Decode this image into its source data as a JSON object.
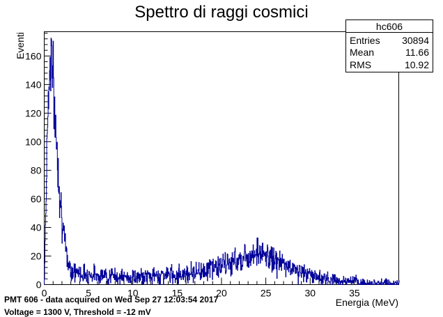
{
  "chart_data": {
    "type": "histogram",
    "title": "Spettro di raggi cosmici",
    "xlabel": "Energia (MeV)",
    "ylabel": "Eventi",
    "xlim": [
      0,
      40
    ],
    "ylim": [
      0,
      177
    ],
    "xticks": [
      0,
      5,
      10,
      15,
      20,
      25,
      30,
      35
    ],
    "yticks": [
      0,
      20,
      40,
      60,
      80,
      100,
      120,
      140,
      160
    ],
    "line_color": "#000099",
    "grid": false,
    "legend": "none",
    "stats": {
      "name": "hc606",
      "rows": [
        {
          "label": "Entries",
          "value": "30894"
        },
        {
          "label": "Mean",
          "value": "11.66"
        },
        {
          "label": "RMS",
          "value": "10.92"
        }
      ]
    },
    "points": [
      [
        0.2,
        60
      ],
      [
        0.4,
        125
      ],
      [
        0.6,
        145
      ],
      [
        0.8,
        168
      ],
      [
        1.0,
        140
      ],
      [
        1.2,
        118
      ],
      [
        1.4,
        100
      ],
      [
        1.6,
        80
      ],
      [
        1.8,
        64
      ],
      [
        2.0,
        48
      ],
      [
        2.2,
        34
      ],
      [
        2.4,
        24
      ],
      [
        2.6,
        18
      ],
      [
        2.8,
        14
      ],
      [
        3.0,
        11
      ],
      [
        3.5,
        9
      ],
      [
        4,
        8
      ],
      [
        5,
        7
      ],
      [
        6,
        7
      ],
      [
        7,
        6
      ],
      [
        8,
        6
      ],
      [
        9,
        5
      ],
      [
        10,
        5
      ],
      [
        11,
        5
      ],
      [
        12,
        6
      ],
      [
        13,
        6
      ],
      [
        14,
        7
      ],
      [
        15,
        7
      ],
      [
        16,
        8
      ],
      [
        17,
        9
      ],
      [
        18,
        10
      ],
      [
        19,
        12
      ],
      [
        20,
        13
      ],
      [
        21,
        15
      ],
      [
        22,
        18
      ],
      [
        23,
        20
      ],
      [
        23.8,
        24
      ],
      [
        24.5,
        21
      ],
      [
        25,
        20
      ],
      [
        26,
        17
      ],
      [
        27,
        14
      ],
      [
        28,
        11
      ],
      [
        29,
        9
      ],
      [
        30,
        7
      ],
      [
        31,
        5
      ],
      [
        32,
        4
      ],
      [
        33,
        3
      ],
      [
        34,
        2
      ],
      [
        35,
        2
      ],
      [
        36,
        1
      ],
      [
        37,
        1
      ],
      [
        38,
        1
      ],
      [
        39,
        0.5
      ],
      [
        40,
        0.5
      ]
    ]
  },
  "notes": {
    "line1": "PMT 606 - data acquired on Wed Sep 27 12:03:54 2017",
    "line2": "Voltage = 1300 V, Threshold = -12 mV"
  }
}
